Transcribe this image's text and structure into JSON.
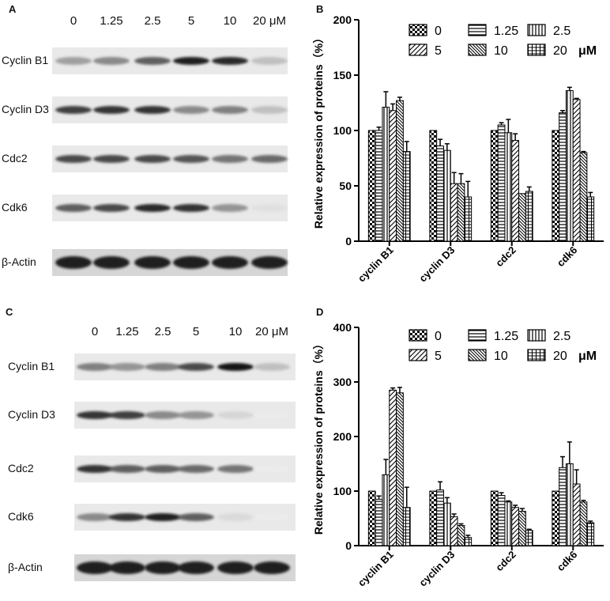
{
  "panels": {
    "A": "A",
    "B": "B",
    "C": "C",
    "D": "D"
  },
  "blot_A": {
    "concentrations": [
      "0",
      "1.25",
      "2.5",
      "5",
      "10",
      "20 μM"
    ],
    "proteins": [
      "Cyclin B1",
      "Cyclin D3",
      "Cdc2",
      "Cdk6",
      "β-Actin"
    ],
    "intensities": [
      [
        0.35,
        0.45,
        0.65,
        0.95,
        0.9,
        0.2
      ],
      [
        0.8,
        0.85,
        0.85,
        0.45,
        0.5,
        0.2
      ],
      [
        0.75,
        0.75,
        0.75,
        0.7,
        0.55,
        0.6
      ],
      [
        0.65,
        0.75,
        0.9,
        0.85,
        0.4,
        0.05
      ],
      [
        0.95,
        0.95,
        0.95,
        0.95,
        0.95,
        0.95
      ]
    ]
  },
  "blot_C": {
    "concentrations": [
      "0",
      "1.25",
      "2.5",
      "5",
      "10",
      "20 μM"
    ],
    "proteins": [
      "Cyclin B1",
      "Cyclin D3",
      "Cdc2",
      "Cdk6",
      "β-Actin"
    ],
    "intensities": [
      [
        0.5,
        0.4,
        0.5,
        0.75,
        1.0,
        0.2
      ],
      [
        0.85,
        0.8,
        0.45,
        0.4,
        0.1,
        0.0
      ],
      [
        0.85,
        0.65,
        0.65,
        0.6,
        0.55,
        0.0
      ],
      [
        0.45,
        0.85,
        0.95,
        0.65,
        0.08,
        0.0
      ],
      [
        0.95,
        0.95,
        0.95,
        0.95,
        0.95,
        0.95
      ]
    ]
  },
  "chart_data": [
    {
      "type": "bar",
      "panel": "B",
      "title": "",
      "xlabel": "",
      "ylabel": "Relative expression of proteins（%）",
      "ylim": [
        0,
        200
      ],
      "yticks": [
        0,
        50,
        100,
        150,
        200
      ],
      "categories": [
        "cyclin B1",
        "cyclin D3",
        "cdc2",
        "cdk6"
      ],
      "legend_unit": "μM",
      "legend_position": "top-right",
      "series": [
        {
          "name": "0",
          "pattern": "checker",
          "values": [
            100,
            100,
            100,
            100
          ],
          "errors": [
            0,
            0,
            0,
            0
          ]
        },
        {
          "name": "1.25",
          "pattern": "hlines",
          "values": [
            100,
            86,
            105,
            116
          ],
          "errors": [
            3,
            6,
            2,
            2
          ]
        },
        {
          "name": "2.5",
          "pattern": "vlines",
          "values": [
            121,
            82,
            98,
            136
          ],
          "errors": [
            14,
            6,
            12,
            3
          ]
        },
        {
          "name": "5",
          "pattern": "diag",
          "values": [
            118,
            52,
            91,
            128
          ],
          "errors": [
            6,
            10,
            6,
            1
          ]
        },
        {
          "name": "10",
          "pattern": "diag-dense",
          "values": [
            127,
            52,
            43,
            80
          ],
          "errors": [
            3,
            9,
            0,
            1
          ]
        },
        {
          "name": "20",
          "pattern": "grid",
          "values": [
            81,
            40,
            45,
            40
          ],
          "errors": [
            9,
            14,
            4,
            4
          ]
        }
      ]
    },
    {
      "type": "bar",
      "panel": "D",
      "title": "",
      "xlabel": "",
      "ylabel": "Relative expression of proteins（%）",
      "ylim": [
        0,
        400
      ],
      "yticks": [
        0,
        100,
        200,
        300,
        400
      ],
      "categories": [
        "cyclin B1",
        "cyclin D3",
        "cdc2",
        "cdk6"
      ],
      "legend_unit": "μM",
      "legend_position": "top-right",
      "series": [
        {
          "name": "0",
          "pattern": "checker",
          "values": [
            100,
            100,
            100,
            100
          ],
          "errors": [
            0,
            0,
            0,
            0
          ]
        },
        {
          "name": "1.25",
          "pattern": "hlines",
          "values": [
            85,
            102,
            92,
            143
          ],
          "errors": [
            6,
            15,
            5,
            20
          ]
        },
        {
          "name": "2.5",
          "pattern": "vlines",
          "values": [
            130,
            78,
            80,
            150
          ],
          "errors": [
            28,
            10,
            2,
            40
          ]
        },
        {
          "name": "5",
          "pattern": "diag",
          "values": [
            285,
            53,
            70,
            113
          ],
          "errors": [
            4,
            5,
            4,
            26
          ]
        },
        {
          "name": "10",
          "pattern": "diag-dense",
          "values": [
            280,
            37,
            63,
            80
          ],
          "errors": [
            10,
            3,
            5,
            3
          ]
        },
        {
          "name": "20",
          "pattern": "grid",
          "values": [
            70,
            15,
            28,
            42
          ],
          "errors": [
            37,
            4,
            2,
            3
          ]
        }
      ]
    }
  ]
}
